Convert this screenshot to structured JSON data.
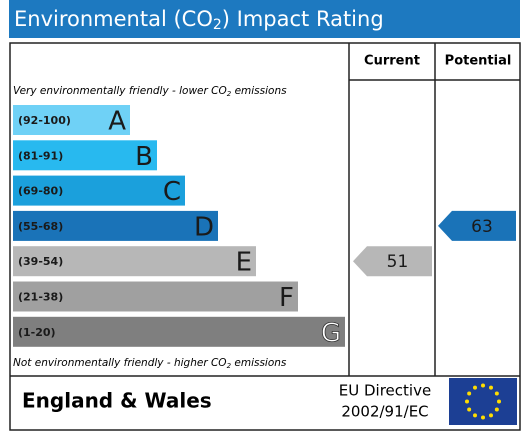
{
  "header": {
    "title": [
      "Environmental (CO",
      "2",
      ") Impact Rating"
    ]
  },
  "columns": {
    "current": "Current",
    "potential": "Potential"
  },
  "top_note": [
    "Very environmentally friendly - lower CO",
    "2",
    " emissions"
  ],
  "bottom_note": [
    "Not environmentally friendly - higher CO",
    "2",
    " emissions"
  ],
  "bands": [
    {
      "range": "(92-100)",
      "letter": "A",
      "color": "#6fd1f6",
      "letter_color": "#1a1a1a"
    },
    {
      "range": "(81-91)",
      "letter": "B",
      "color": "#28b9ef",
      "letter_color": "#1a1a1a"
    },
    {
      "range": "(69-80)",
      "letter": "C",
      "color": "#1ba0dc",
      "letter_color": "#1a1a1a"
    },
    {
      "range": "(55-68)",
      "letter": "D",
      "color": "#1a73b8",
      "letter_color": "#1a1a1a"
    },
    {
      "range": "(39-54)",
      "letter": "E",
      "color": "#b7b7b7",
      "letter_color": "#1a1a1a"
    },
    {
      "range": "(21-38)",
      "letter": "F",
      "color": "#a0a0a0",
      "letter_color": "#1a1a1a"
    },
    {
      "range": "(1-20)",
      "letter": "G",
      "color": "#7f7f7f",
      "letter_color": "#ffffff"
    }
  ],
  "current": {
    "value": 51,
    "color": "#b7b7b7"
  },
  "potential": {
    "value": 63,
    "color": "#1a73b8"
  },
  "footer": {
    "region": "England & Wales",
    "directive": [
      "EU Directive",
      "2002/91/EC"
    ]
  }
}
